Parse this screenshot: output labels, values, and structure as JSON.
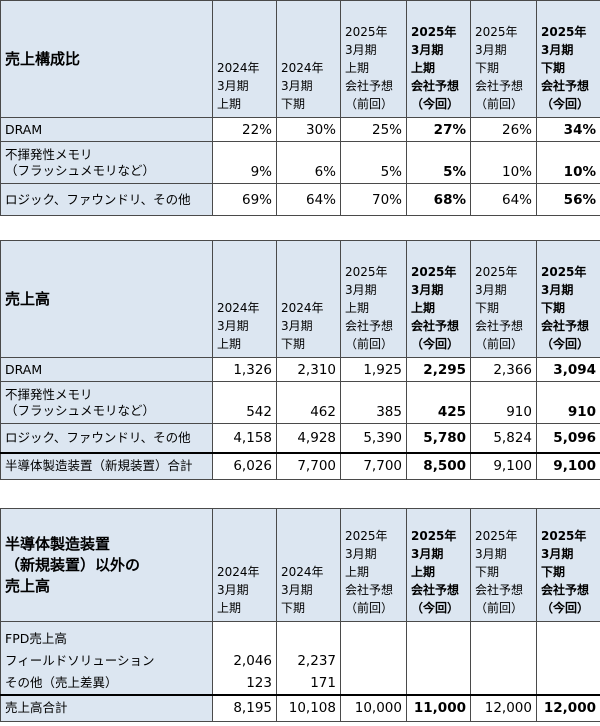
{
  "headers": {
    "c1": "2024年\n3月期\n上期",
    "c2": "2024年\n3月期\n下期",
    "c3": "2025年\n3月期\n上期\n会社予想\n（前回）",
    "c4": "2025年\n3月期\n上期\n会社予想\n（今回）",
    "c5": "2025年\n3月期\n下期\n会社予想\n（前回）",
    "c6": "2025年\n3月期\n下期\n会社予想\n（今回）"
  },
  "table1": {
    "title": "売上構成比",
    "rows": [
      {
        "label": "DRAM",
        "values": [
          "22%",
          "30%",
          "25%",
          "27%",
          "26%",
          "34%"
        ]
      },
      {
        "label": "不揮発性メモリ\n（フラッシュメモリなど）",
        "values": [
          "9%",
          "6%",
          "5%",
          "5%",
          "10%",
          "10%"
        ]
      },
      {
        "label": "ロジック、ファウンドリ、その他",
        "values": [
          "69%",
          "64%",
          "70%",
          "68%",
          "64%",
          "56%"
        ]
      }
    ]
  },
  "table2": {
    "title": "売上高",
    "rows": [
      {
        "label": "DRAM",
        "values": [
          "1,326",
          "2,310",
          "1,925",
          "2,295",
          "2,366",
          "3,094"
        ]
      },
      {
        "label": "不揮発性メモリ\n（フラッシュメモリなど）",
        "values": [
          "542",
          "462",
          "385",
          "425",
          "910",
          "910"
        ]
      },
      {
        "label": "ロジック、ファウンドリ、その他",
        "values": [
          "4,158",
          "4,928",
          "5,390",
          "5,780",
          "5,824",
          "5,096"
        ]
      },
      {
        "label": "半導体製造装置（新規装置）合計",
        "values": [
          "6,026",
          "7,700",
          "7,700",
          "8,500",
          "9,100",
          "9,100"
        ]
      }
    ]
  },
  "table3": {
    "title": "半導体製造装置\n（新規装置）以外の\n売上高",
    "rows": [
      {
        "label": "FPD売上高",
        "values": [
          "",
          "",
          "",
          "",
          "",
          ""
        ]
      },
      {
        "label": "フィールドソリューション",
        "values": [
          "2,046",
          "2,237",
          "",
          "",
          "",
          ""
        ]
      },
      {
        "label": "その他（売上差異）",
        "values": [
          "123",
          "171",
          "",
          "",
          "",
          ""
        ]
      },
      {
        "label": "売上高合計",
        "values": [
          "8,195",
          "10,108",
          "10,000",
          "11,000",
          "12,000",
          "12,000"
        ]
      }
    ]
  }
}
